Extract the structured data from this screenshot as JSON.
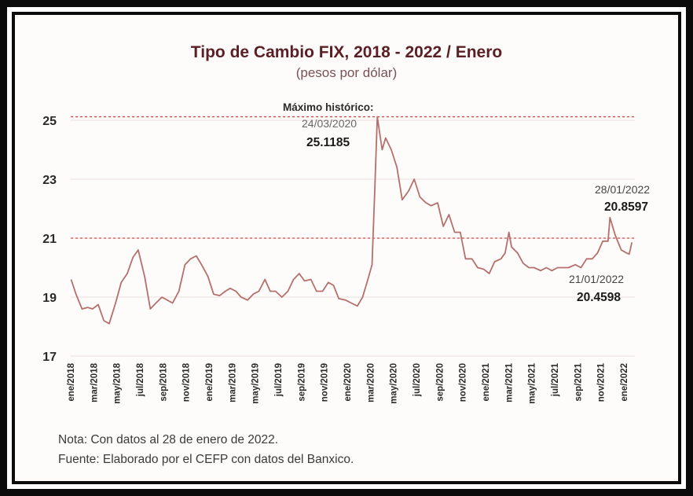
{
  "chart_data": {
    "type": "line",
    "title": "Tipo de Cambio FIX, 2018 - 2022 / Enero",
    "subtitle": "(pesos por dólar)",
    "ylim": [
      17,
      25
    ],
    "y_ticks": [
      17,
      19,
      21,
      23,
      25
    ],
    "grid": true,
    "x_ticks": [
      "ene/2018",
      "mar/2018",
      "may/2018",
      "jul/2018",
      "sep/2018",
      "nov/2018",
      "ene/2019",
      "mar/2019",
      "may/2019",
      "jul/2019",
      "sep/2019",
      "nov/2019",
      "ene/2020",
      "mar/2020",
      "may/2020",
      "jul/2020",
      "sep/2020",
      "nov/2020",
      "ene/2021",
      "mar/2021",
      "may/2021",
      "jul/2021",
      "sep/2021",
      "nov/2021",
      "ene/2022"
    ],
    "reference_lines": [
      25.1185,
      21.0
    ],
    "series": [
      {
        "color": "#b5706c",
        "x": [
          "2018-01-02",
          "2018-01-15",
          "2018-01-31",
          "2018-02-15",
          "2018-02-28",
          "2018-03-15",
          "2018-03-30",
          "2018-04-13",
          "2018-04-30",
          "2018-05-15",
          "2018-05-31",
          "2018-06-15",
          "2018-06-29",
          "2018-07-16",
          "2018-07-31",
          "2018-08-15",
          "2018-08-31",
          "2018-09-14",
          "2018-09-28",
          "2018-10-15",
          "2018-10-31",
          "2018-11-15",
          "2018-11-30",
          "2018-12-14",
          "2018-12-31",
          "2019-01-15",
          "2019-01-31",
          "2019-02-15",
          "2019-02-28",
          "2019-03-15",
          "2019-03-29",
          "2019-04-15",
          "2019-04-30",
          "2019-05-15",
          "2019-05-31",
          "2019-06-14",
          "2019-06-28",
          "2019-07-15",
          "2019-07-31",
          "2019-08-15",
          "2019-08-30",
          "2019-09-13",
          "2019-09-30",
          "2019-10-15",
          "2019-10-31",
          "2019-11-15",
          "2019-11-29",
          "2019-12-13",
          "2019-12-31",
          "2020-01-15",
          "2020-01-31",
          "2020-02-14",
          "2020-02-28",
          "2020-03-10",
          "2020-03-17",
          "2020-03-24",
          "2020-04-06",
          "2020-04-15",
          "2020-04-30",
          "2020-05-15",
          "2020-05-29",
          "2020-06-15",
          "2020-06-30",
          "2020-07-15",
          "2020-07-31",
          "2020-08-14",
          "2020-08-31",
          "2020-09-15",
          "2020-09-30",
          "2020-10-15",
          "2020-10-30",
          "2020-11-13",
          "2020-11-30",
          "2020-12-15",
          "2020-12-31",
          "2021-01-15",
          "2021-01-29",
          "2021-02-15",
          "2021-02-26",
          "2021-03-08",
          "2021-03-15",
          "2021-03-31",
          "2021-04-15",
          "2021-04-30",
          "2021-05-14",
          "2021-05-31",
          "2021-06-15",
          "2021-06-30",
          "2021-07-15",
          "2021-07-30",
          "2021-08-13",
          "2021-08-31",
          "2021-09-15",
          "2021-09-30",
          "2021-10-15",
          "2021-10-29",
          "2021-11-12",
          "2021-11-26",
          "2021-12-01",
          "2021-12-15",
          "2021-12-31",
          "2022-01-14",
          "2022-01-21",
          "2022-01-28"
        ],
        "values": [
          19.6,
          19.1,
          18.6,
          18.65,
          18.6,
          18.75,
          18.2,
          18.1,
          18.8,
          19.5,
          19.8,
          20.35,
          20.6,
          19.7,
          18.6,
          18.8,
          19.0,
          18.9,
          18.8,
          19.2,
          20.1,
          20.3,
          20.4,
          20.1,
          19.7,
          19.1,
          19.05,
          19.2,
          19.3,
          19.2,
          19.0,
          18.9,
          19.1,
          19.2,
          19.6,
          19.2,
          19.2,
          19.0,
          19.2,
          19.6,
          19.8,
          19.55,
          19.6,
          19.2,
          19.2,
          19.5,
          19.4,
          18.95,
          18.9,
          18.8,
          18.7,
          19.0,
          19.6,
          20.1,
          22.5,
          25.1185,
          24.0,
          24.4,
          24.0,
          23.4,
          22.3,
          22.6,
          23.0,
          22.4,
          22.2,
          22.1,
          22.2,
          21.4,
          21.8,
          21.2,
          21.2,
          20.3,
          20.3,
          20.0,
          19.95,
          19.8,
          20.2,
          20.3,
          20.5,
          21.2,
          20.7,
          20.5,
          20.15,
          20.0,
          20.0,
          19.9,
          20.0,
          19.9,
          20.0,
          20.0,
          20.0,
          20.1,
          20.0,
          20.3,
          20.3,
          20.5,
          20.9,
          20.9,
          21.7,
          21.1,
          20.6,
          20.5,
          20.4598,
          20.8597
        ]
      }
    ],
    "annotations": [
      {
        "label": "Máximo histórico:",
        "date": "24/03/2020",
        "value": "25.1185"
      },
      {
        "date": "28/01/2022",
        "value": "20.8597"
      },
      {
        "date": "21/01/2022",
        "value": "20.4598"
      }
    ]
  },
  "notes": {
    "nota": "Nota: Con datos al 28 de enero de 2022.",
    "fuente": "Fuente: Elaborado por el CEFP con datos del Banxico."
  },
  "colors": {
    "line": "#b5706c",
    "reference": "#d24a4a",
    "title": "#5a1f24",
    "frame": "#0b0b0b"
  }
}
